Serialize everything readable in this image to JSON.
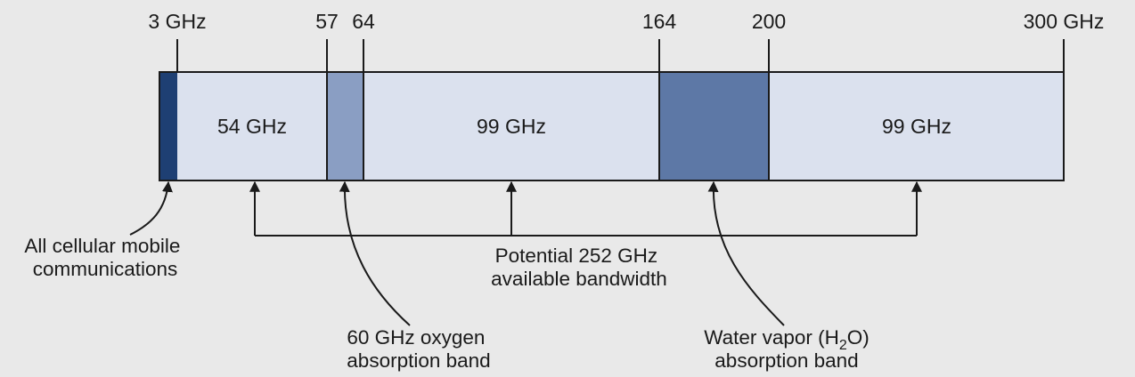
{
  "ticks": {
    "t3": "3 GHz",
    "t57": "57",
    "t64": "64",
    "t164": "164",
    "t200": "200",
    "t300": "300 GHz"
  },
  "segments": {
    "s1": "54 GHz",
    "s2": "99 GHz",
    "s3": "99 GHz"
  },
  "annotations": {
    "cellular": [
      "All cellular mobile",
      "communications"
    ],
    "potential": [
      "Potential 252 GHz",
      "available bandwidth"
    ],
    "oxygen": [
      "60 GHz oxygen",
      "absorption band"
    ],
    "water_line1_pre": "Water vapor (H",
    "water_sub": "2",
    "water_line1_post": "O)",
    "water_line2": "absorption band"
  },
  "colors": {
    "background": "#e9e9e9",
    "band_light": "#dbe1ee",
    "band_oxygen": "#8a9ec3",
    "band_water": "#5d78a6",
    "band_cellular": "#1e3f73",
    "outline": "#1a1a1a"
  }
}
